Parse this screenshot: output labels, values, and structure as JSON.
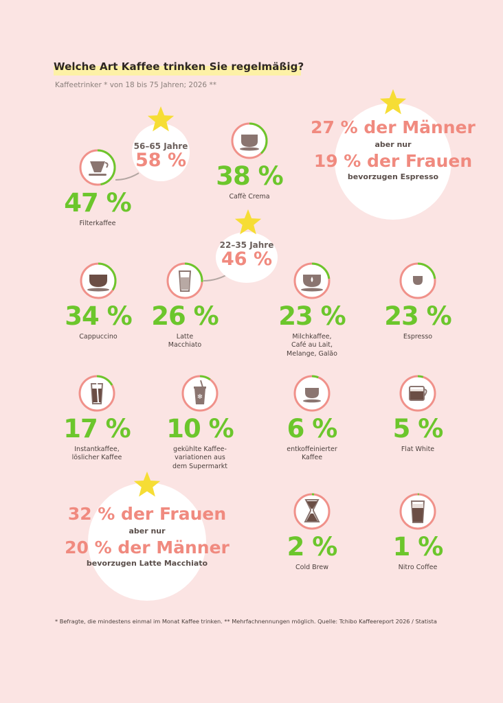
{
  "title": "Welche Art Kaffee trinken Sie regelmäßig?",
  "subtitle": "Kaffeetrinker * von 18 bis 75 Jahren; 2026 **",
  "footnote": "* Befragte, die mindestens einmal im Monat Kaffee trinken. ** Mehrfachnennungen möglich. Quelle: Tchibo Kaffeereport 2026 / Statista",
  "colors": {
    "background": "#fbe4e3",
    "value_green": "#6cc62c",
    "accent_salmon": "#f08a7f",
    "ring_salmon": "#f0918a",
    "icon_brown": "#8a7570",
    "star_yellow": "#f6dd35"
  },
  "callouts": {
    "filter_age": {
      "age": "56–65 Jahre",
      "pct": "58 %"
    },
    "latte_age": {
      "age": "22–35 Jahre",
      "pct": "46 %"
    },
    "espresso_gender": {
      "line1": "27 % der Männer",
      "line2": "aber nur",
      "line3": "19 % der Frauen",
      "line4": "bevorzugen Espresso"
    },
    "latte_gender": {
      "line1": "32 % der Frauen",
      "line2": "aber nur",
      "line3": "20 % der Männer",
      "line4": "bevorzugen Latte Macchiato"
    }
  },
  "chart_data": {
    "type": "bar",
    "unit": "%",
    "categories": [
      "Filterkaffee",
      "Caffè Crema",
      "Cappuccino",
      "Latte Macchiato",
      "Milchkaffee, Café au Lait, Melange, Galão",
      "Espresso",
      "Instantkaffee, löslicher Kaffee",
      "gekühlte Kaffeevariationen aus dem Supermarkt",
      "entkoffeinierter Kaffee",
      "Flat White",
      "Cold Brew",
      "Nitro Coffee"
    ],
    "values": [
      47,
      38,
      34,
      26,
      23,
      23,
      17,
      10,
      6,
      5,
      2,
      1
    ],
    "items": [
      {
        "pct": "47 %",
        "label": "Filterkaffee",
        "value": 47,
        "icon": "filter-icon"
      },
      {
        "pct": "38 %",
        "label": "Caffè Crema",
        "value": 38,
        "icon": "crema-cup-icon"
      },
      {
        "pct": "34 %",
        "label": "Cappuccino",
        "value": 34,
        "icon": "cappuccino-cup-icon"
      },
      {
        "pct": "26 %",
        "label": "Latte\nMacchiato",
        "value": 26,
        "icon": "latte-glass-icon"
      },
      {
        "pct": "23 %",
        "label": "Milchkaffee,\nCafé au Lait,\nMelange, Galão",
        "value": 23,
        "icon": "milk-coffee-icon"
      },
      {
        "pct": "23 %",
        "label": "Espresso",
        "value": 23,
        "icon": "espresso-cup-icon"
      },
      {
        "pct": "17 %",
        "label": "Instantkaffee,\nlöslicher Kaffee",
        "value": 17,
        "icon": "instant-glass-icon"
      },
      {
        "pct": "10 %",
        "label": "gekühlte Kaffee-\nvariationen aus\ndem Supermarkt",
        "value": 10,
        "icon": "iced-cup-icon"
      },
      {
        "pct": "6 %",
        "label": "entkoffeinierter\nKaffee",
        "value": 6,
        "icon": "decaf-cup-icon"
      },
      {
        "pct": "5 %",
        "label": "Flat White",
        "value": 5,
        "icon": "flat-white-mug-icon"
      },
      {
        "pct": "2 %",
        "label": "Cold Brew",
        "value": 2,
        "icon": "chemex-icon"
      },
      {
        "pct": "1 %",
        "label": "Nitro Coffee",
        "value": 1,
        "icon": "nitro-glass-icon"
      }
    ]
  }
}
